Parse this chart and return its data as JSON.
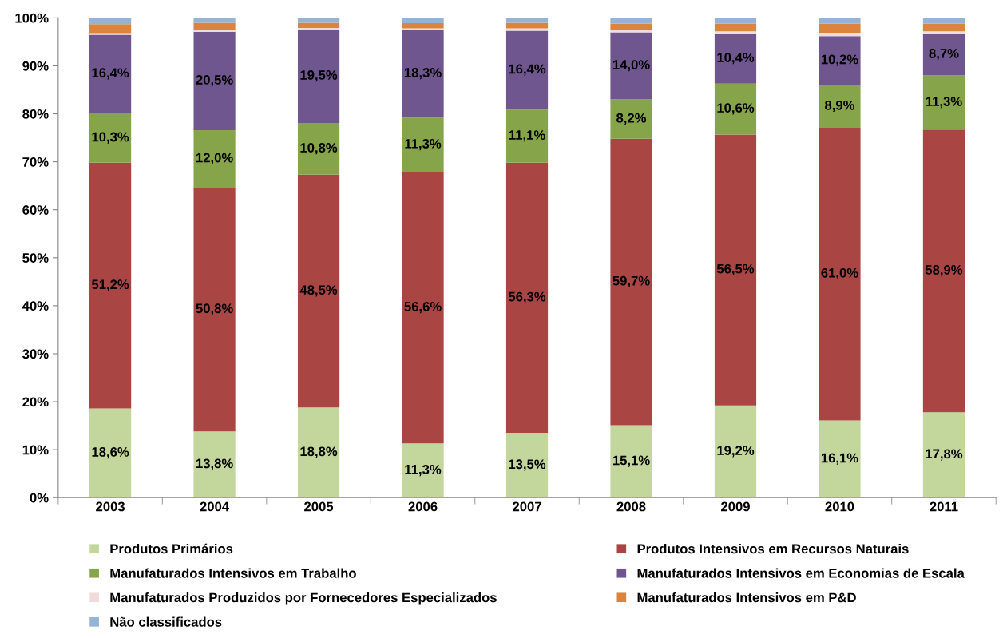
{
  "chart_data": {
    "type": "bar",
    "stacked": true,
    "categories": [
      "2003",
      "2004",
      "2005",
      "2006",
      "2007",
      "2008",
      "2009",
      "2010",
      "2011"
    ],
    "ylim": [
      0,
      100
    ],
    "yticks": [
      {
        "value": 0,
        "label": "0%"
      },
      {
        "value": 10,
        "label": "10%"
      },
      {
        "value": 20,
        "label": "20%"
      },
      {
        "value": 30,
        "label": "30%"
      },
      {
        "value": 40,
        "label": "40%"
      },
      {
        "value": 50,
        "label": "50%"
      },
      {
        "value": 60,
        "label": "60%"
      },
      {
        "value": 70,
        "label": "70%"
      },
      {
        "value": 80,
        "label": "80%"
      },
      {
        "value": 90,
        "label": "90%"
      },
      {
        "value": 100,
        "label": "100%"
      }
    ],
    "grid": false,
    "legend": "bottom",
    "series": [
      {
        "name": "Produtos Primários",
        "color": "#c3d69b",
        "values": [
          18.6,
          13.8,
          18.8,
          11.3,
          13.5,
          15.1,
          19.2,
          16.1,
          17.8
        ],
        "value_labels": [
          "18,6%",
          "13,8%",
          "18,8%",
          "11,3%",
          "13,5%",
          "15,1%",
          "19,2%",
          "16,1%",
          "17,8%"
        ]
      },
      {
        "name": "Produtos Intensivos em Recursos Naturais",
        "color": "#a94643",
        "values": [
          51.2,
          50.8,
          48.5,
          56.6,
          56.3,
          59.7,
          56.5,
          61.0,
          58.9
        ],
        "value_labels": [
          "51,2%",
          "50,8%",
          "48,5%",
          "56,6%",
          "56,3%",
          "59,7%",
          "56,5%",
          "61,0%",
          "58,9%"
        ]
      },
      {
        "name": "Manufaturados Intensivos em Trabalho",
        "color": "#86a44a",
        "values": [
          10.3,
          12.0,
          10.8,
          11.3,
          11.1,
          8.2,
          10.6,
          8.9,
          11.3
        ],
        "value_labels": [
          "10,3%",
          "12,0%",
          "10,8%",
          "11,3%",
          "11,1%",
          "8,2%",
          "10,6%",
          "8,9%",
          "11,3%"
        ]
      },
      {
        "name": "Manufaturados Intensivos em Economias de Escala",
        "color": "#6f568e",
        "values": [
          16.4,
          20.5,
          19.5,
          18.3,
          16.4,
          14.0,
          10.4,
          10.2,
          8.7
        ],
        "value_labels": [
          "16,4%",
          "20,5%",
          "19,5%",
          "18,3%",
          "16,4%",
          "14,0%",
          "10,4%",
          "10,2%",
          "8,7%"
        ]
      },
      {
        "name": "Manufaturados Produzidos por Fornecedores Especializados",
        "color": "#f2dcdb",
        "values": [
          0.3,
          0.4,
          0.3,
          0.3,
          0.5,
          0.5,
          0.5,
          0.7,
          0.5
        ]
      },
      {
        "name": "Manufaturados Intensivos em P&D",
        "color": "#db843d",
        "values": [
          1.9,
          1.5,
          1.1,
          1.1,
          1.2,
          1.3,
          1.6,
          1.9,
          1.6
        ]
      },
      {
        "name": "Não classificados",
        "color": "#95b3d7",
        "values": [
          1.3,
          1.0,
          1.0,
          1.2,
          1.0,
          1.2,
          1.2,
          1.2,
          1.2
        ]
      }
    ]
  }
}
